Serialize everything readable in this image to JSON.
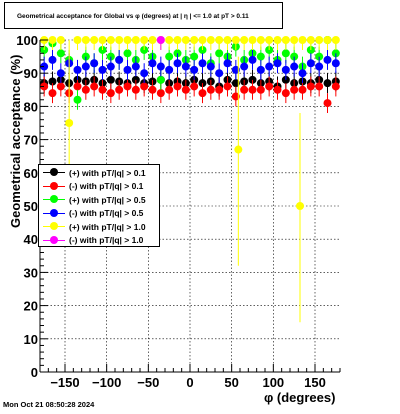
{
  "chart_data": {
    "type": "scatter",
    "title": "Geometrical acceptance for Global vs φ (degrees) at |  η | <= 1.0 at pT > 0.11",
    "xlabel": "φ (degrees)",
    "ylabel": "Geometrical acceptance (%)",
    "xlim": [
      -180,
      180
    ],
    "ylim": [
      0,
      100
    ],
    "x_ticks": [
      -150,
      -100,
      -50,
      0,
      50,
      100,
      150
    ],
    "x_tick_labels": [
      "−150",
      "−100",
      "−50",
      "0",
      "50",
      "100",
      "150"
    ],
    "y_ticks": [
      0,
      10,
      20,
      30,
      40,
      50,
      60,
      70,
      80,
      90,
      100
    ],
    "y_tick_labels": [
      "0",
      "10",
      "20",
      "30",
      "40",
      "50",
      "60",
      "70",
      "80",
      "90",
      "100"
    ],
    "grid": true,
    "legend_position": "middle-left",
    "series": [
      {
        "name": "(+) with pT/|q| > 0.1",
        "color": "#000000",
        "points": [
          [
            -175,
            87
          ],
          [
            -165,
            87.5
          ],
          [
            -155,
            88
          ],
          [
            -145,
            87
          ],
          [
            -135,
            88
          ],
          [
            -125,
            87.5
          ],
          [
            -115,
            88
          ],
          [
            -105,
            87
          ],
          [
            -95,
            88
          ],
          [
            -85,
            87.5
          ],
          [
            -75,
            87
          ],
          [
            -65,
            88
          ],
          [
            -55,
            87
          ],
          [
            -45,
            87.5
          ],
          [
            -35,
            88
          ],
          [
            -25,
            87
          ],
          [
            -15,
            87.5
          ],
          [
            -5,
            87
          ],
          [
            5,
            88
          ],
          [
            15,
            87
          ],
          [
            25,
            87.5
          ],
          [
            35,
            86
          ],
          [
            45,
            88
          ],
          [
            55,
            87
          ],
          [
            65,
            87.5
          ],
          [
            75,
            88
          ],
          [
            85,
            87
          ],
          [
            95,
            87.5
          ],
          [
            105,
            86
          ],
          [
            115,
            88
          ],
          [
            125,
            87
          ],
          [
            135,
            87.5
          ],
          [
            145,
            87
          ],
          [
            155,
            88
          ],
          [
            165,
            87
          ],
          [
            175,
            87.5
          ]
        ]
      },
      {
        "name": "(-) with pT/|q| > 0.1",
        "color": "#ff0000",
        "points": [
          [
            -175,
            86
          ],
          [
            -165,
            84
          ],
          [
            -155,
            86
          ],
          [
            -145,
            84
          ],
          [
            -135,
            86
          ],
          [
            -125,
            85
          ],
          [
            -115,
            86
          ],
          [
            -105,
            85
          ],
          [
            -95,
            84
          ],
          [
            -85,
            85
          ],
          [
            -75,
            86
          ],
          [
            -65,
            85
          ],
          [
            -55,
            86
          ],
          [
            -45,
            85
          ],
          [
            -35,
            84
          ],
          [
            -25,
            85
          ],
          [
            -15,
            86
          ],
          [
            -5,
            85
          ],
          [
            5,
            86
          ],
          [
            15,
            84
          ],
          [
            25,
            85
          ],
          [
            35,
            85
          ],
          [
            45,
            86
          ],
          [
            55,
            83
          ],
          [
            65,
            85
          ],
          [
            75,
            85
          ],
          [
            85,
            85
          ],
          [
            95,
            86
          ],
          [
            105,
            85
          ],
          [
            115,
            84
          ],
          [
            125,
            85
          ],
          [
            135,
            85
          ],
          [
            145,
            86
          ],
          [
            155,
            86
          ],
          [
            165,
            81
          ],
          [
            175,
            86
          ]
        ]
      },
      {
        "name": "(+) with pT/|q| > 0.5",
        "color": "#00ff00",
        "points": [
          [
            -175,
            97
          ],
          [
            -165,
            99
          ],
          [
            -155,
            96
          ],
          [
            -145,
            94
          ],
          [
            -135,
            82
          ],
          [
            -125,
            95
          ],
          [
            -115,
            93
          ],
          [
            -105,
            97
          ],
          [
            -95,
            95
          ],
          [
            -85,
            94
          ],
          [
            -75,
            96
          ],
          [
            -65,
            94
          ],
          [
            -55,
            97
          ],
          [
            -45,
            95
          ],
          [
            -35,
            88
          ],
          [
            -25,
            95
          ],
          [
            -15,
            96
          ],
          [
            -5,
            94
          ],
          [
            5,
            95
          ],
          [
            15,
            97
          ],
          [
            25,
            93
          ],
          [
            35,
            96
          ],
          [
            45,
            95
          ],
          [
            55,
            98
          ],
          [
            65,
            94
          ],
          [
            75,
            96
          ],
          [
            85,
            95
          ],
          [
            95,
            97
          ],
          [
            105,
            94
          ],
          [
            115,
            96
          ],
          [
            125,
            95
          ],
          [
            135,
            92
          ],
          [
            145,
            97
          ],
          [
            155,
            95
          ],
          [
            165,
            100
          ],
          [
            175,
            96
          ]
        ]
      },
      {
        "name": "(-) with pT/|q| > 0.5",
        "color": "#0000ff",
        "points": [
          [
            -175,
            92
          ],
          [
            -165,
            94
          ],
          [
            -155,
            90
          ],
          [
            -145,
            93
          ],
          [
            -135,
            91
          ],
          [
            -125,
            92
          ],
          [
            -115,
            93
          ],
          [
            -105,
            91
          ],
          [
            -95,
            92
          ],
          [
            -85,
            94
          ],
          [
            -75,
            91
          ],
          [
            -65,
            92
          ],
          [
            -55,
            90
          ],
          [
            -45,
            93
          ],
          [
            -35,
            92
          ],
          [
            -25,
            91
          ],
          [
            -15,
            93
          ],
          [
            -5,
            92
          ],
          [
            5,
            91
          ],
          [
            15,
            93
          ],
          [
            25,
            92
          ],
          [
            35,
            90
          ],
          [
            45,
            93
          ],
          [
            55,
            91
          ],
          [
            65,
            92
          ],
          [
            75,
            94
          ],
          [
            85,
            91
          ],
          [
            95,
            92
          ],
          [
            105,
            93
          ],
          [
            115,
            91
          ],
          [
            125,
            92
          ],
          [
            135,
            90
          ],
          [
            145,
            93
          ],
          [
            155,
            92
          ],
          [
            165,
            94
          ],
          [
            175,
            93
          ]
        ]
      },
      {
        "name": "(+) with pT/|q| > 1.0",
        "color": "#ffff00",
        "points": [
          [
            -175,
            100
          ],
          [
            -165,
            100
          ],
          [
            -155,
            100
          ],
          [
            -145,
            75
          ],
          [
            -135,
            100
          ],
          [
            -125,
            100
          ],
          [
            -115,
            100
          ],
          [
            -105,
            100
          ],
          [
            -95,
            100
          ],
          [
            -85,
            100
          ],
          [
            -75,
            100
          ],
          [
            -65,
            100
          ],
          [
            -55,
            100
          ],
          [
            -45,
            100
          ],
          [
            -35,
            100
          ],
          [
            -25,
            100
          ],
          [
            -15,
            100
          ],
          [
            -5,
            100
          ],
          [
            5,
            100
          ],
          [
            15,
            100
          ],
          [
            25,
            100
          ],
          [
            35,
            100
          ],
          [
            45,
            100
          ],
          [
            55,
            100
          ],
          [
            58,
            67
          ],
          [
            65,
            100
          ],
          [
            75,
            100
          ],
          [
            85,
            100
          ],
          [
            95,
            100
          ],
          [
            105,
            100
          ],
          [
            115,
            100
          ],
          [
            125,
            100
          ],
          [
            132,
            50
          ],
          [
            135,
            100
          ],
          [
            145,
            100
          ],
          [
            155,
            100
          ],
          [
            165,
            100
          ],
          [
            175,
            100
          ]
        ]
      },
      {
        "name": "(-) with pT/|q| > 1.0",
        "color": "#ff00ff",
        "points": [
          [
            -35,
            100
          ]
        ]
      }
    ]
  },
  "footer_timestamp": "Mon Oct 21 08:50:28 2024"
}
